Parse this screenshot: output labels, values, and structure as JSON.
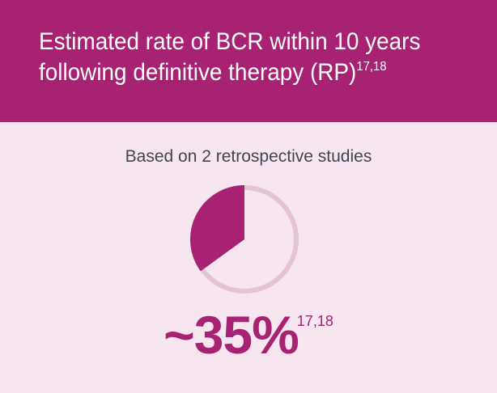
{
  "header": {
    "title_line1": "Estimated rate of BCR within 10 years",
    "title_line2": "following definitive therapy (RP)",
    "title_refs": "17,18"
  },
  "subtitle": "Based on 2 retrospective studies",
  "stat": {
    "value_label": "~35%",
    "refs": "17,18"
  },
  "colors": {
    "header_bg": "#a72272",
    "page_bg": "#f7e6f0",
    "slice": "#a72272",
    "ring": "#e4c3d6"
  },
  "chart_data": {
    "type": "pie",
    "values": [
      35
    ],
    "total": 100
  }
}
